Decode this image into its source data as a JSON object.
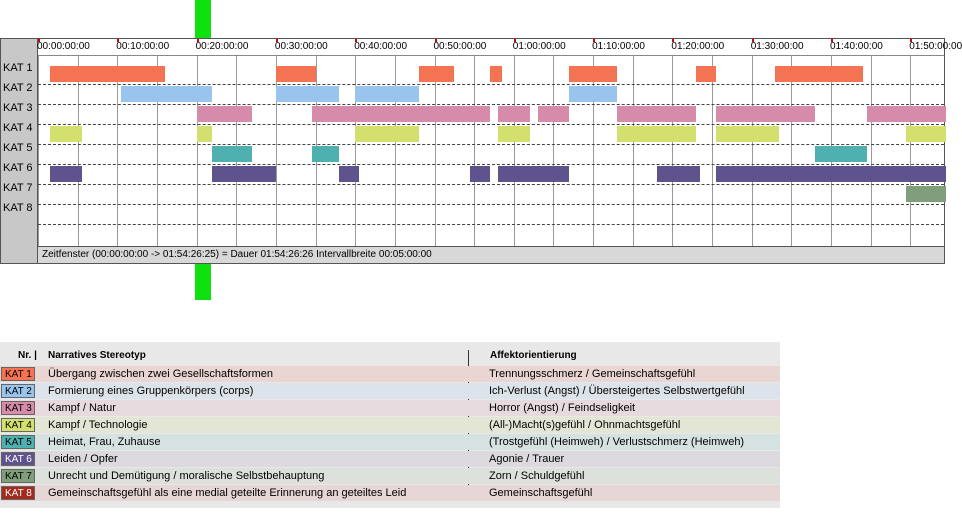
{
  "timeline": {
    "tracks": [
      "KAT 1",
      "KAT 2",
      "KAT 3",
      "KAT 4",
      "KAT 5",
      "KAT 6",
      "KAT 7",
      "KAT 8"
    ],
    "ticks": [
      "00:00:00:00",
      "00:10:00:00",
      "00:20:00:00",
      "00:30:00:00",
      "00:40:00:00",
      "00:50:00:00",
      "01:00:00:00",
      "01:10:00:00",
      "01:20:00:00",
      "01:30:00:00",
      "01:40:00:00",
      "01:50:00:00"
    ],
    "total_minutes": 114.44,
    "colors": [
      "#f47352",
      "#99c4ee",
      "#d68baa",
      "#d4e06e",
      "#4fb1af",
      "#5f538e",
      "#7f9e7a",
      "#a32a1d"
    ],
    "segments": [
      {
        "track": 0,
        "start": 1.5,
        "end": 16.0
      },
      {
        "track": 0,
        "start": 30.0,
        "end": 35.0
      },
      {
        "track": 0,
        "start": 48.0,
        "end": 52.5
      },
      {
        "track": 0,
        "start": 57.0,
        "end": 58.5
      },
      {
        "track": 0,
        "start": 67.0,
        "end": 73.0
      },
      {
        "track": 0,
        "start": 83.0,
        "end": 85.5
      },
      {
        "track": 0,
        "start": 93.0,
        "end": 104.0
      },
      {
        "track": 1,
        "start": 10.5,
        "end": 22.0
      },
      {
        "track": 1,
        "start": 30.0,
        "end": 38.0
      },
      {
        "track": 1,
        "start": 40.0,
        "end": 48.0
      },
      {
        "track": 1,
        "start": 67.0,
        "end": 73.0
      },
      {
        "track": 2,
        "start": 20.0,
        "end": 27.0
      },
      {
        "track": 2,
        "start": 34.5,
        "end": 57.0
      },
      {
        "track": 2,
        "start": 58.0,
        "end": 62.0
      },
      {
        "track": 2,
        "start": 63.0,
        "end": 67.0
      },
      {
        "track": 2,
        "start": 73.0,
        "end": 83.0
      },
      {
        "track": 2,
        "start": 85.5,
        "end": 98.0
      },
      {
        "track": 2,
        "start": 104.5,
        "end": 114.44
      },
      {
        "track": 3,
        "start": 1.5,
        "end": 5.5
      },
      {
        "track": 3,
        "start": 20.0,
        "end": 22.0
      },
      {
        "track": 3,
        "start": 40.0,
        "end": 48.0
      },
      {
        "track": 3,
        "start": 58.0,
        "end": 62.0
      },
      {
        "track": 3,
        "start": 73.0,
        "end": 83.0
      },
      {
        "track": 3,
        "start": 85.5,
        "end": 93.5
      },
      {
        "track": 3,
        "start": 109.5,
        "end": 114.44
      },
      {
        "track": 4,
        "start": 22.0,
        "end": 27.0
      },
      {
        "track": 4,
        "start": 34.5,
        "end": 38.0
      },
      {
        "track": 4,
        "start": 98.0,
        "end": 104.5
      },
      {
        "track": 5,
        "start": 1.5,
        "end": 5.5
      },
      {
        "track": 5,
        "start": 22.0,
        "end": 30.0
      },
      {
        "track": 5,
        "start": 38.0,
        "end": 40.5
      },
      {
        "track": 5,
        "start": 54.5,
        "end": 57.0
      },
      {
        "track": 5,
        "start": 58.0,
        "end": 67.0
      },
      {
        "track": 5,
        "start": 78.0,
        "end": 83.5
      },
      {
        "track": 5,
        "start": 85.5,
        "end": 114.44
      },
      {
        "track": 6,
        "start": 109.5,
        "end": 114.44
      }
    ],
    "status_text": "Zeitfenster (00:00:00:00 -> 01:54:26:25) = Dauer 01:54:26:26    Intervallbreite 00:05:00:00"
  },
  "legend": {
    "header_nr": "Nr. |",
    "header_stereotyp": "Narratives Stereotyp",
    "header_affekt": "Affektorientierung",
    "rows": [
      {
        "kat": "KAT 1",
        "stereotyp": "Übergang zwischen zwei Gesellschaftsformen",
        "affekt": "Trennungsschmerz / Gemeinschaftsgefühl",
        "color": "#f47352",
        "row_bg": "#e9d5d1"
      },
      {
        "kat": "KAT 2",
        "stereotyp": "Formierung eines Gruppenkörpers (corps)",
        "affekt": "Ich-Verlust (Angst) / Übersteigertes Selbstwertgefühl",
        "color": "#99c4ee",
        "row_bg": "#dde3ea"
      },
      {
        "kat": "KAT 3",
        "stereotyp": "Kampf / Natur",
        "affekt": "Horror (Angst) / Feindseligkeit",
        "color": "#d68baa",
        "row_bg": "#e6dade"
      },
      {
        "kat": "KAT 4",
        "stereotyp": "Kampf / Technologie",
        "affekt": "(All-)Macht(s)gefühl / Ohnmachtsgefühl",
        "color": "#d4e06e",
        "row_bg": "#e4e6d5"
      },
      {
        "kat": "KAT 5",
        "stereotyp": "Heimat, Frau, Zuhause",
        "affekt": "(Trostgefühl (Heimweh) / Verlustschmerz (Heimweh)",
        "color": "#4fb1af",
        "row_bg": "#d6e2e1"
      },
      {
        "kat": "KAT 6",
        "stereotyp": "Leiden / Opfer",
        "affekt": "Agonie / Trauer",
        "color": "#5f538e",
        "row_bg": "#dcdadf"
      },
      {
        "kat": "KAT 7",
        "stereotyp": "Unrecht und Demütigung / moralische Selbstbehauptung",
        "affekt": "Zorn / Schuldgefühl",
        "color": "#7f9e7a",
        "row_bg": "#dde1dc"
      },
      {
        "kat": "KAT 8",
        "stereotyp": "Gemeinschaftsgefühl als eine medial geteilte Erinnerung an geteiltes Leid",
        "affekt": "Gemeinschaftsgefühl",
        "color": "#a32a1d",
        "row_bg": "#e6d6d5"
      }
    ]
  }
}
